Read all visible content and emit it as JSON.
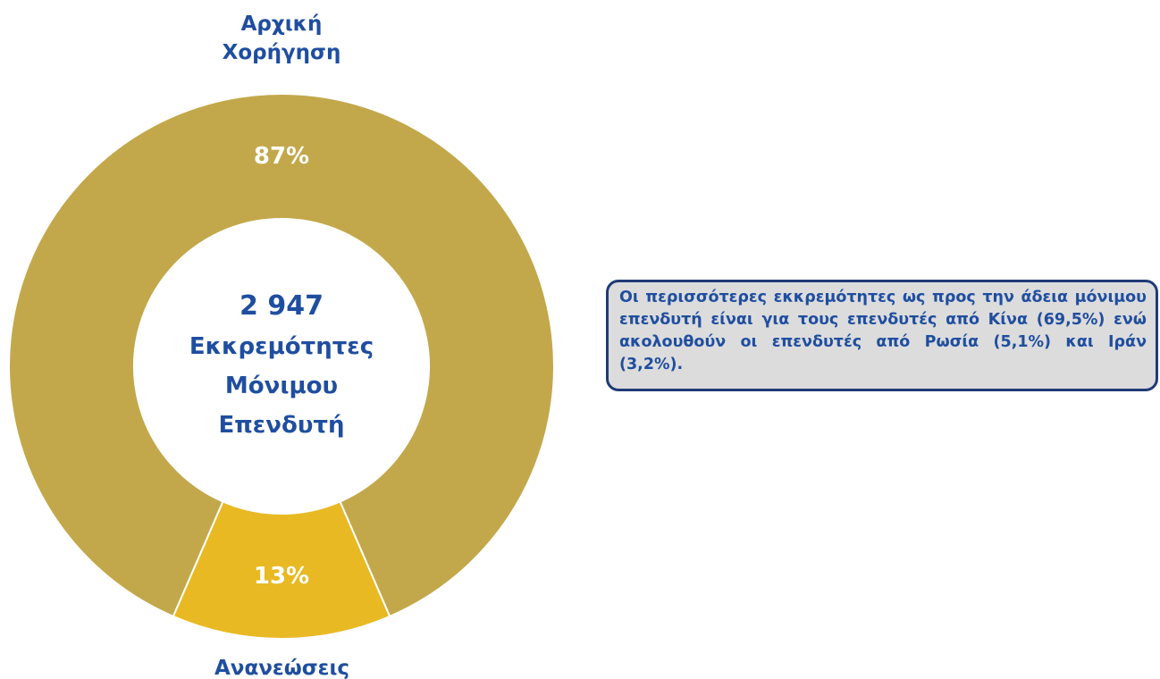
{
  "chart_data": {
    "type": "donut",
    "categories": [
      "Αρχική Χορήγηση",
      "Ανανεώσεις"
    ],
    "values": [
      87,
      13
    ],
    "value_labels": [
      "87%",
      "13%"
    ],
    "colors": [
      "#c3a84b",
      "#e8b923"
    ],
    "center_title": "2 947",
    "center_subtitle": "Εκκρεμότητες Μόνιμου Επενδυτή",
    "annotation": "Οι περισσότερες εκκρεμότητες ως προς την άδεια μόνιμου επενδυτή είναι για τους επενδυτές από Κίνα (69,5%) ενώ ακολουθούν οι επενδυτές από Ρωσία (5,1%) και Ιράν (3,2%)."
  }
}
